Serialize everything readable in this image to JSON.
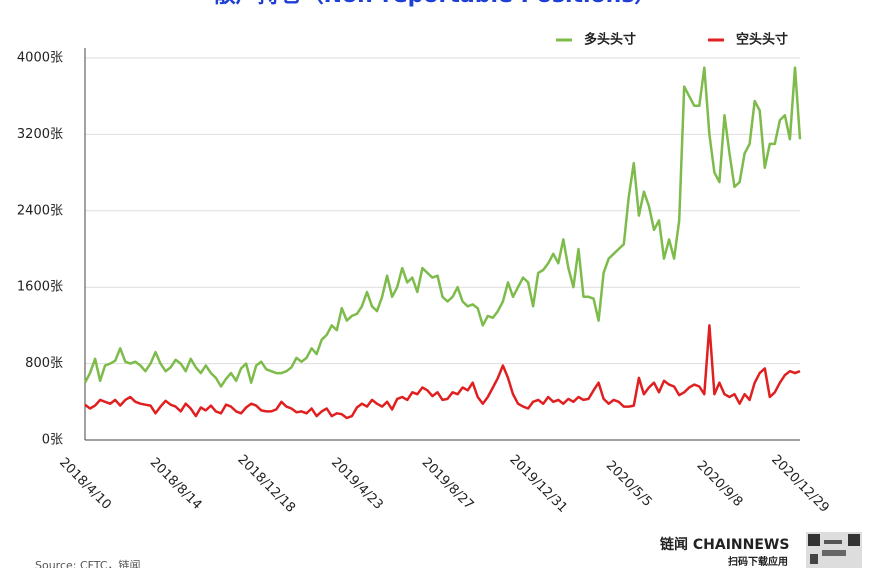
{
  "title": "散户持仓（Non-reportable Positions）",
  "source": "Source: CFTC，链闻",
  "logo": {
    "brand": "链闻 CHAINNEWS",
    "caption": "扫码下载应用"
  },
  "chart_data": {
    "type": "line",
    "categories": [
      "2018/4/10",
      null,
      null,
      null,
      null,
      null,
      null,
      null,
      null,
      null,
      null,
      null,
      null,
      null,
      null,
      null,
      null,
      null,
      "2018/8/14",
      null,
      null,
      null,
      null,
      null,
      null,
      null,
      null,
      null,
      null,
      null,
      null,
      null,
      null,
      null,
      null,
      null,
      "2018/12/18",
      null,
      null,
      null,
      null,
      null,
      null,
      null,
      null,
      null,
      null,
      null,
      null,
      null,
      null,
      null,
      null,
      null,
      "2019/4/23",
      null,
      null,
      null,
      null,
      null,
      null,
      null,
      null,
      null,
      null,
      null,
      null,
      null,
      null,
      null,
      null,
      null,
      "2019/8/27",
      null,
      null,
      null,
      null,
      null,
      null,
      null,
      null,
      null,
      null,
      null,
      null,
      null,
      null,
      null,
      null,
      null,
      "2019/12/31",
      null,
      null,
      null,
      null,
      null,
      null,
      null,
      null,
      null,
      null,
      null,
      null,
      null,
      null,
      null,
      null,
      null,
      "2020/5/5",
      null,
      null,
      null,
      null,
      null,
      null,
      null,
      null,
      null,
      null,
      null,
      null,
      null,
      null,
      null,
      null,
      null,
      "2020/9/8",
      null,
      null,
      null,
      null,
      null,
      null,
      null,
      null,
      null,
      null,
      null,
      null,
      null,
      null,
      null,
      "2020/12/29"
    ],
    "series": [
      {
        "name": "多头头寸",
        "color": "#7dbb4a",
        "values": [
          600,
          700,
          850,
          620,
          780,
          800,
          830,
          960,
          820,
          800,
          820,
          780,
          720,
          800,
          920,
          800,
          720,
          760,
          840,
          800,
          720,
          850,
          760,
          700,
          780,
          700,
          650,
          560,
          640,
          700,
          620,
          750,
          800,
          600,
          780,
          820,
          740,
          720,
          700,
          700,
          720,
          760,
          860,
          820,
          860,
          960,
          900,
          1050,
          1100,
          1200,
          1150,
          1380,
          1250,
          1300,
          1320,
          1400,
          1550,
          1400,
          1350,
          1500,
          1720,
          1500,
          1600,
          1800,
          1650,
          1700,
          1550,
          1800,
          1750,
          1700,
          1720,
          1500,
          1450,
          1500,
          1600,
          1450,
          1400,
          1420,
          1380,
          1200,
          1300,
          1280,
          1350,
          1450,
          1650,
          1500,
          1600,
          1700,
          1650,
          1400,
          1750,
          1780,
          1850,
          1950,
          1850,
          2100,
          1800,
          1600,
          2000,
          1500,
          1500,
          1480,
          1250,
          1750,
          1900,
          1950,
          2000,
          2050,
          2550,
          2900,
          2350,
          2600,
          2450,
          2200,
          2300,
          1900,
          2100,
          1900,
          2300,
          3700,
          3600,
          3500,
          3500,
          3900,
          3200,
          2800,
          2700,
          3400,
          3000,
          2650,
          2700,
          3000,
          3100,
          3550,
          3450,
          2850,
          3100,
          3100,
          3350,
          3400,
          3150,
          3900,
          3150
        ]
      },
      {
        "name": "空头头寸",
        "color": "#e02020",
        "values": [
          370,
          330,
          360,
          420,
          400,
          380,
          420,
          360,
          420,
          450,
          400,
          380,
          370,
          360,
          280,
          350,
          410,
          370,
          350,
          300,
          380,
          330,
          250,
          340,
          310,
          360,
          300,
          280,
          370,
          350,
          300,
          280,
          340,
          380,
          360,
          310,
          300,
          300,
          320,
          400,
          350,
          330,
          290,
          300,
          280,
          330,
          250,
          300,
          330,
          250,
          280,
          270,
          230,
          250,
          340,
          380,
          350,
          420,
          380,
          350,
          400,
          320,
          430,
          450,
          420,
          500,
          480,
          550,
          520,
          460,
          500,
          420,
          430,
          500,
          480,
          550,
          520,
          600,
          450,
          380,
          450,
          550,
          650,
          780,
          650,
          480,
          380,
          350,
          330,
          400,
          420,
          380,
          450,
          400,
          420,
          380,
          430,
          400,
          450,
          420,
          430,
          520,
          600,
          430,
          380,
          420,
          400,
          350,
          350,
          360,
          650,
          480,
          550,
          600,
          500,
          620,
          580,
          560,
          470,
          500,
          550,
          580,
          560,
          480,
          1200,
          480,
          600,
          480,
          450,
          480,
          380,
          480,
          420,
          600,
          700,
          750,
          450,
          500,
          600,
          680,
          720,
          700,
          720
        ]
      }
    ],
    "ylim": [
      0,
      4000
    ],
    "yticks": [
      {
        "value": 0,
        "label": "0张"
      },
      {
        "value": 800,
        "label": "800张"
      },
      {
        "value": 1600,
        "label": "1600张"
      },
      {
        "value": 2400,
        "label": "2400张"
      },
      {
        "value": 3200,
        "label": "3200张"
      },
      {
        "value": 4000,
        "label": "4000张"
      }
    ],
    "grid": true,
    "legend": "top-right"
  }
}
